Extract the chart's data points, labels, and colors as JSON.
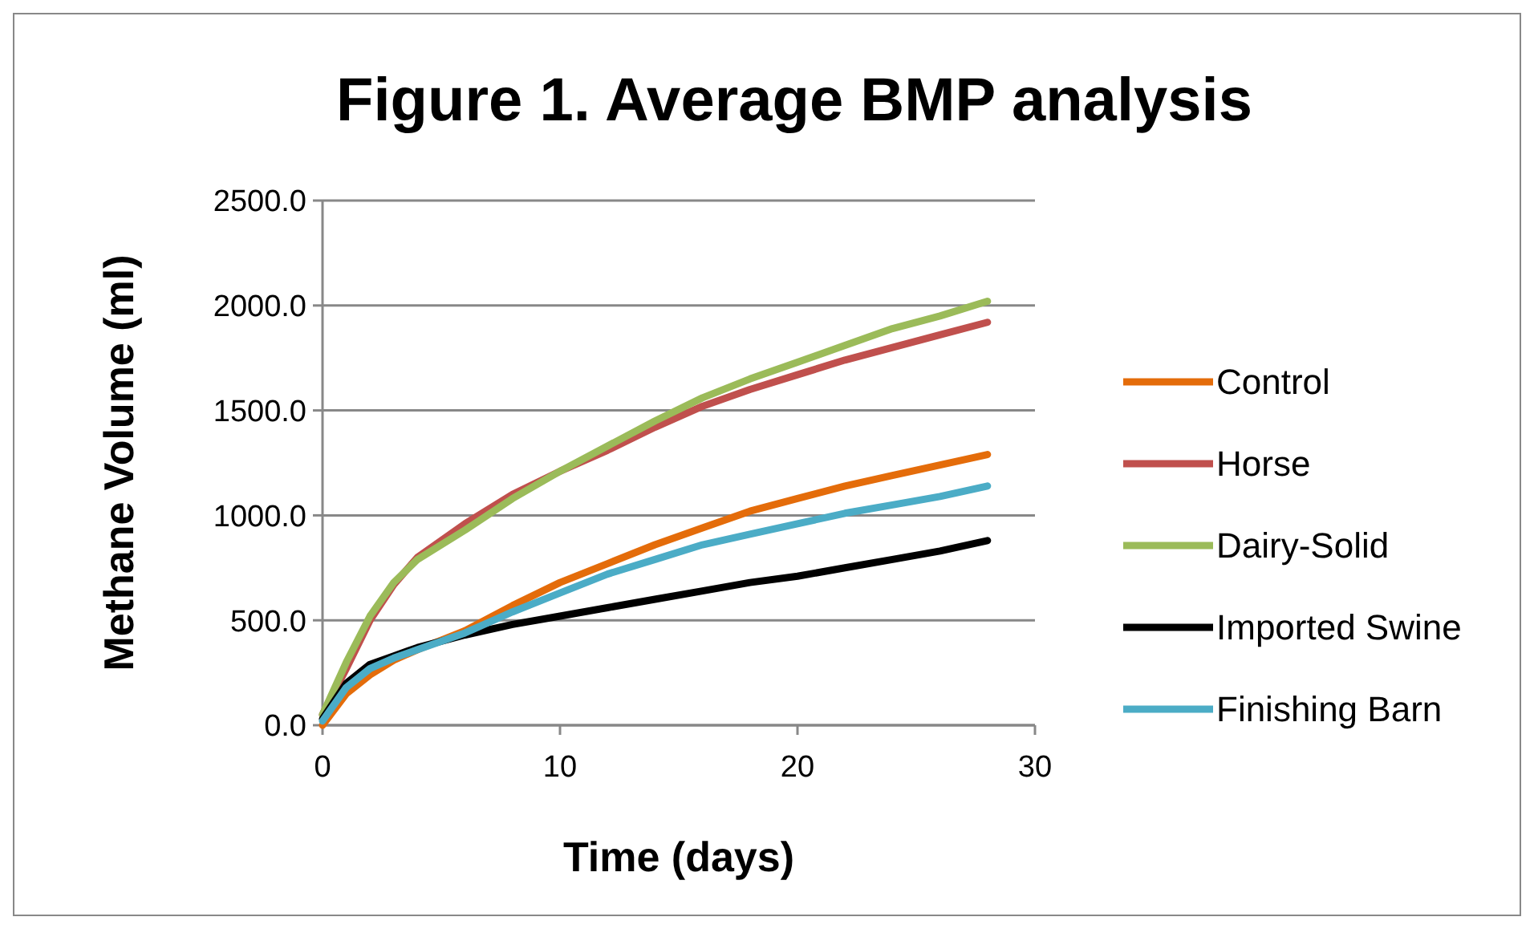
{
  "chart_data": {
    "type": "line",
    "title": "Figure 1.  Average BMP analysis",
    "xlabel": "Time (days)",
    "ylabel": "Methane Volume (ml)",
    "x": [
      0,
      1,
      2,
      3,
      4,
      6,
      8,
      10,
      12,
      14,
      16,
      18,
      20,
      22,
      24,
      26,
      28
    ],
    "series": [
      {
        "name": "Control",
        "color": "#e46c0a",
        "values": [
          0,
          150,
          240,
          310,
          360,
          450,
          570,
          680,
          770,
          860,
          940,
          1020,
          1080,
          1140,
          1190,
          1240,
          1290
        ]
      },
      {
        "name": "Horse",
        "color": "#c0504d",
        "values": [
          50,
          270,
          500,
          670,
          800,
          960,
          1100,
          1210,
          1310,
          1420,
          1520,
          1600,
          1670,
          1740,
          1800,
          1860,
          1920
        ]
      },
      {
        "name": "Dairy-Solid",
        "color": "#9bbb59",
        "values": [
          50,
          300,
          520,
          680,
          790,
          930,
          1080,
          1210,
          1330,
          1450,
          1560,
          1650,
          1730,
          1810,
          1890,
          1950,
          2020
        ]
      },
      {
        "name": "Imported Swine",
        "color": "#000000",
        "values": [
          30,
          200,
          290,
          330,
          370,
          430,
          480,
          520,
          560,
          600,
          640,
          680,
          710,
          750,
          790,
          830,
          880
        ]
      },
      {
        "name": "Finishing Barn",
        "color": "#4bacc6",
        "values": [
          20,
          180,
          270,
          320,
          360,
          440,
          540,
          630,
          720,
          790,
          860,
          910,
          960,
          1010,
          1050,
          1090,
          1140
        ]
      }
    ],
    "xlim": [
      0,
      30
    ],
    "xticks": [
      0,
      10,
      20,
      30
    ],
    "ylim": [
      0,
      2500
    ],
    "yticks": [
      {
        "value": 0,
        "label": "0.0"
      },
      {
        "value": 500,
        "label": "500.0"
      },
      {
        "value": 1000,
        "label": "1000.0"
      },
      {
        "value": 1500,
        "label": "1500.0"
      },
      {
        "value": 2000,
        "label": "2000.0"
      },
      {
        "value": 2500,
        "label": "2500.0"
      }
    ],
    "grid": "y",
    "legend": "right",
    "marker": "none",
    "line_style": "solid"
  }
}
